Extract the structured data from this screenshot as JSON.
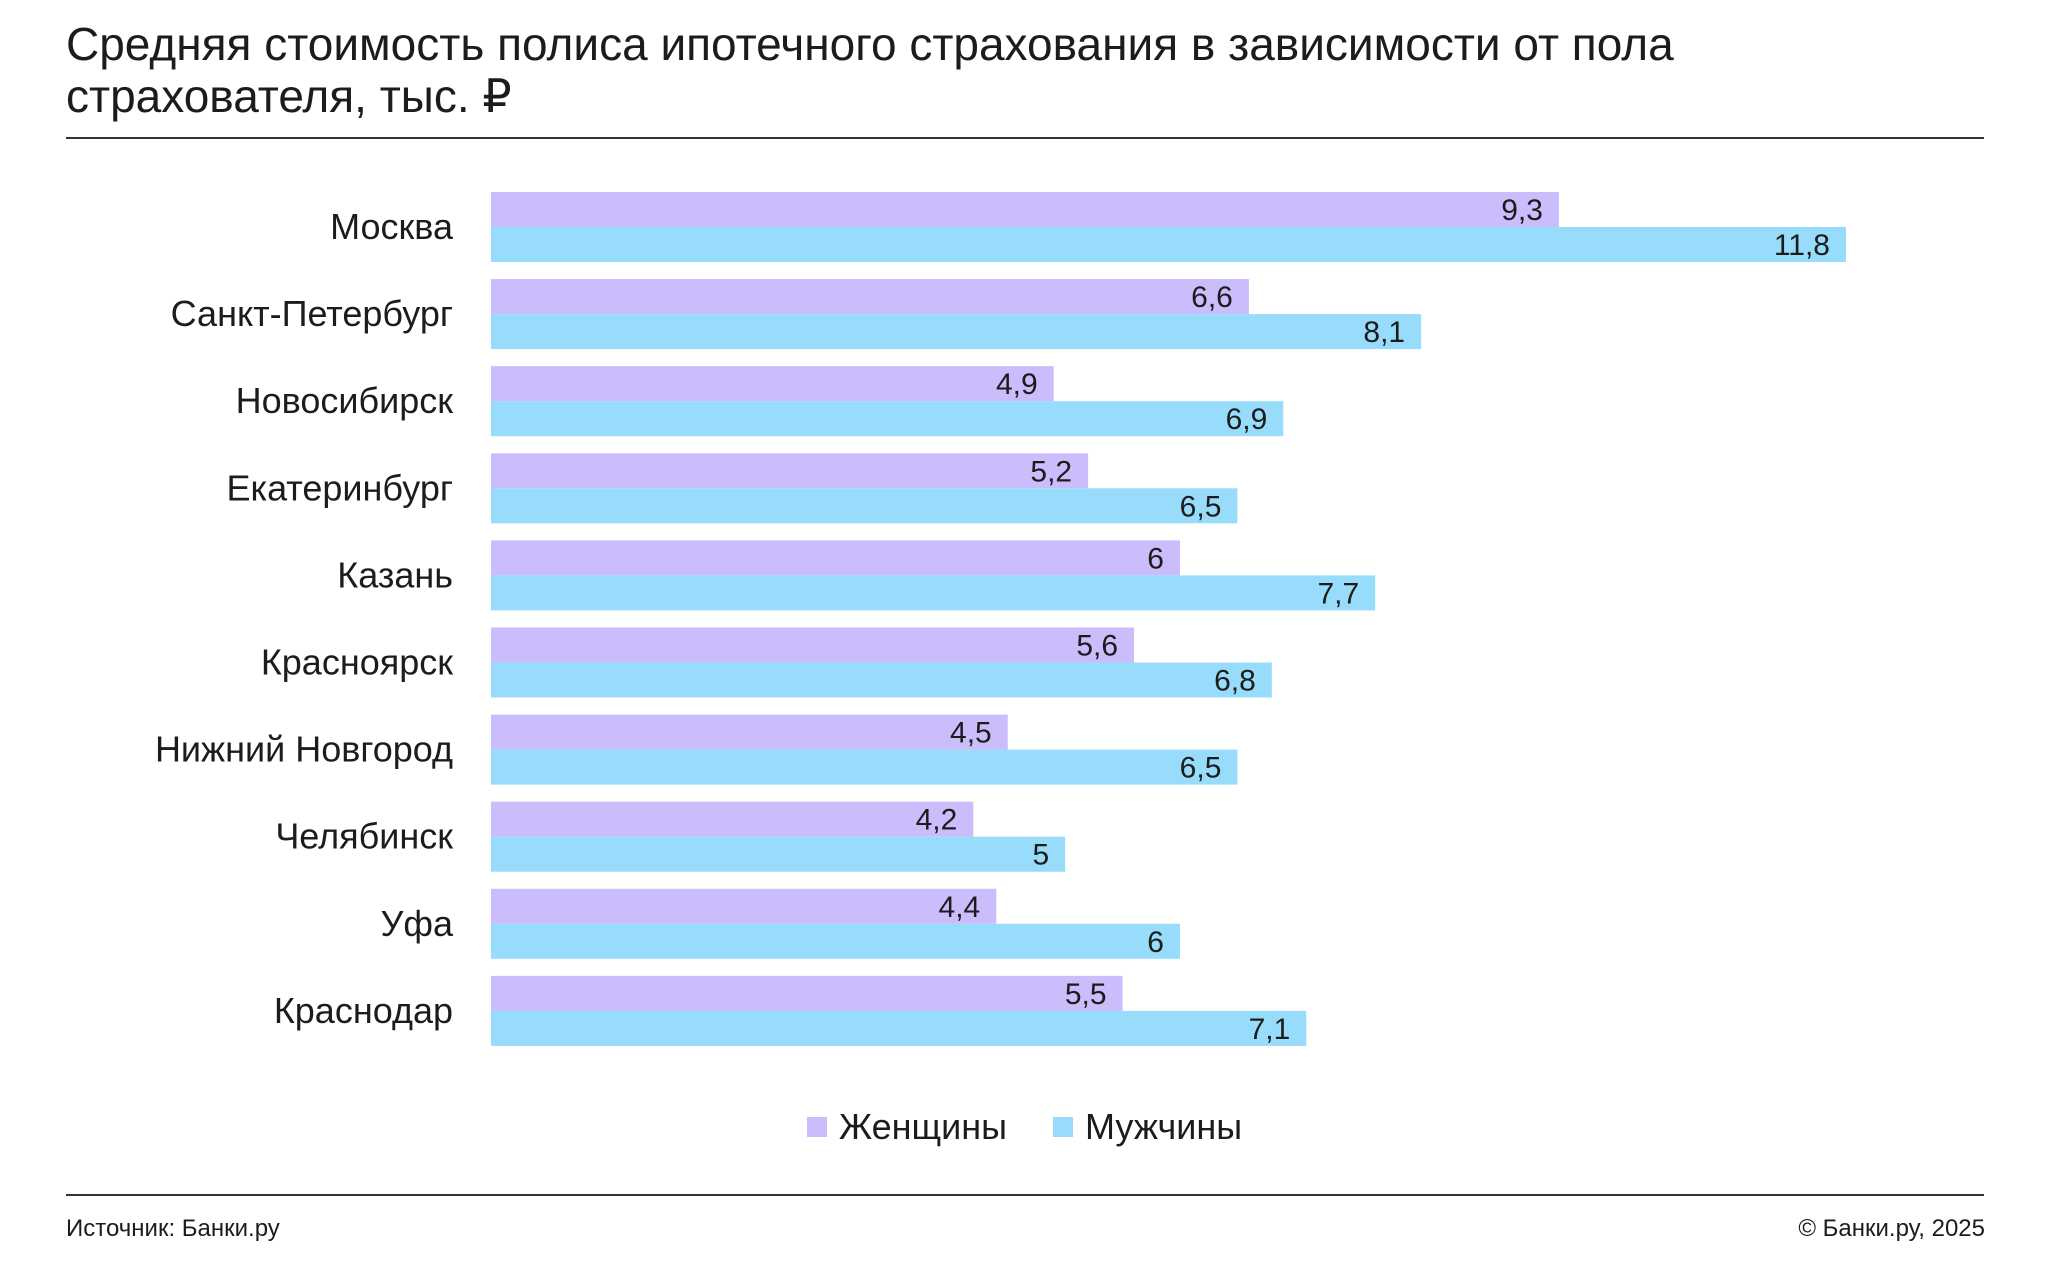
{
  "title": "Средняя стоимость полиса ипотечного страхования в зависимости от пола страхователя, тыс. ₽",
  "footer": {
    "source": "Источник: Банки.ру",
    "copyright": "© Банки.ру, 2025"
  },
  "colors": {
    "women": "#cbbcfc",
    "men": "#98dcfb"
  },
  "chart_data": {
    "type": "bar",
    "orientation": "horizontal",
    "categories": [
      "Москва",
      "Санкт-Петербург",
      "Новосибирск",
      "Екатеринбург",
      "Казань",
      "Красноярск",
      "Нижний Новгород",
      "Челябинск",
      "Уфа",
      "Краснодар"
    ],
    "series": [
      {
        "name": "Женщины",
        "values": [
          9.3,
          6.6,
          4.9,
          5.2,
          6,
          5.6,
          4.5,
          4.2,
          4.4,
          5.5
        ],
        "labels": [
          "9,3",
          "6,6",
          "4,9",
          "5,2",
          "6",
          "5,6",
          "4,5",
          "4,2",
          "4,4",
          "5,5"
        ]
      },
      {
        "name": "Мужчины",
        "values": [
          11.8,
          8.1,
          6.9,
          6.5,
          7.7,
          6.8,
          6.5,
          5,
          6,
          7.1
        ],
        "labels": [
          "11,8",
          "8,1",
          "6,9",
          "6,5",
          "7,7",
          "6,8",
          "6,5",
          "5",
          "6",
          "7,1"
        ]
      }
    ],
    "xlim": [
      0,
      11.8
    ],
    "grid": false,
    "legend": "bottom-center"
  }
}
